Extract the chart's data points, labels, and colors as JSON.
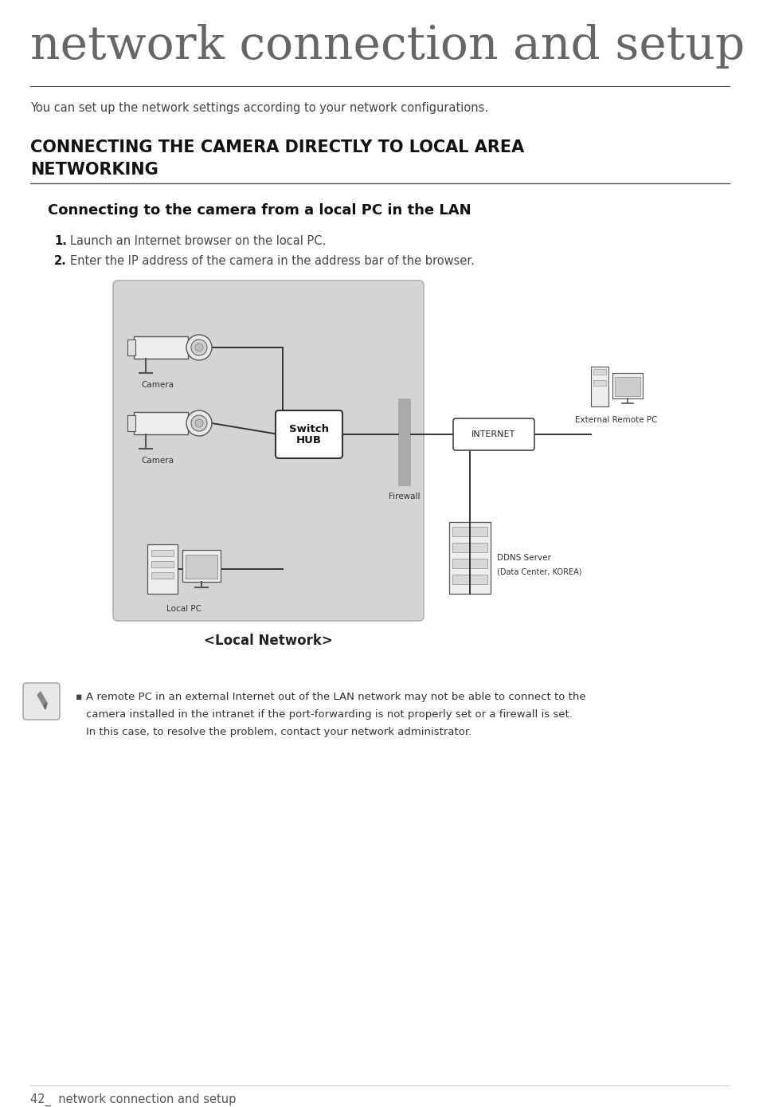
{
  "title": "network connection and setup",
  "subtitle": "You can set up the network settings according to your network configurations.",
  "section_title_line1": "CONNECTING THE CAMERA DIRECTLY TO LOCAL AREA",
  "section_title_line2": "NETWORKING",
  "subsection_title": "Connecting to the camera from a local PC in the LAN",
  "step1_num": "1.",
  "step1_text": "Launch an Internet browser on the local PC.",
  "step2_num": "2.",
  "step2_text": "Enter the IP address of the camera in the address bar of the browser.",
  "local_network_label": "<Local Network>",
  "note_line1": "A remote PC in an external Internet out of the LAN network may not be able to connect to the",
  "note_line2": "camera installed in the intranet if the port-forwarding is not properly set or a firewall is set.",
  "note_line3": "In this case, to resolve the problem, contact your network administrator.",
  "footer_text": "42_  network connection and setup",
  "bg_color": "#ffffff",
  "text_color": "#444444",
  "dark_color": "#111111",
  "gray_color": "#888888",
  "diagram_bg": "#d4d4d4",
  "diagram_border": "#b0b0b0",
  "white": "#ffffff",
  "firewall_color": "#aaaaaa",
  "line_color": "#333333",
  "title_color": "#666666"
}
